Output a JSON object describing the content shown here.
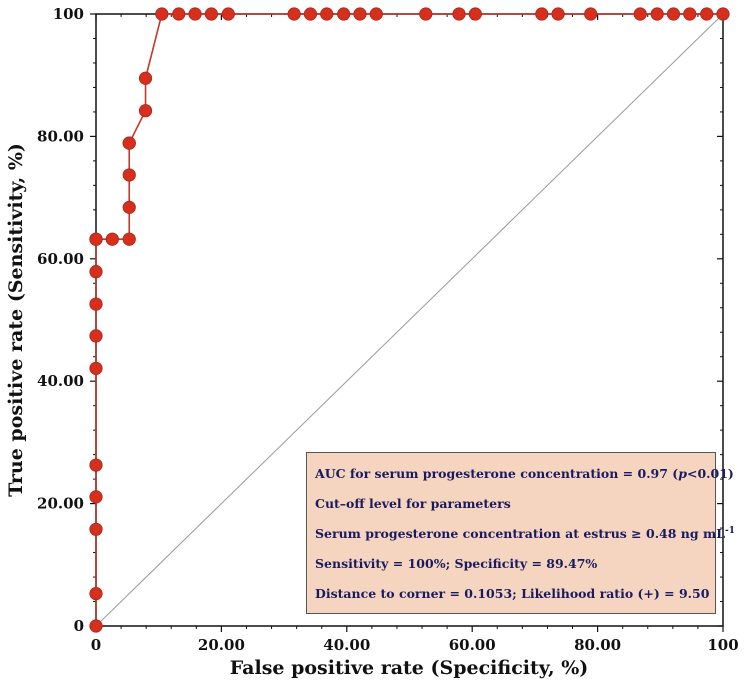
{
  "chart_data": {
    "type": "line",
    "xlabel": "False positive rate (Specificity, %)",
    "ylabel": "True positive rate (Sensitivity, %)",
    "xlim": [
      0,
      100
    ],
    "ylim": [
      0,
      100
    ],
    "x_ticks": [
      "0",
      "20.00",
      "40.00",
      "60.00",
      "80.00",
      "100"
    ],
    "y_ticks": [
      "0",
      "20.00",
      "40.00",
      "60.00",
      "80.00",
      "100"
    ],
    "grid": false,
    "colors": {
      "series": "#c0392b",
      "marker": "#d62f1e",
      "diagonal": "#999999",
      "box": "#f5d5c0",
      "box_text": "#1a1a5e"
    },
    "series": [
      {
        "x": [
          0,
          0,
          0,
          0,
          0,
          0,
          0,
          0,
          0,
          0,
          0,
          2.6,
          5.3,
          5.3,
          5.3,
          5.3,
          5.3,
          7.9,
          7.9,
          10.5,
          13.2,
          15.8,
          18.4,
          21.1,
          31.6,
          34.2,
          36.8,
          39.5,
          42.1,
          44.7,
          52.6,
          57.9,
          60.5,
          71.1,
          73.7,
          78.9,
          86.8,
          89.5,
          92.1,
          94.7,
          97.4,
          100
        ],
        "y": [
          0,
          5.3,
          15.8,
          21.1,
          26.3,
          42.1,
          47.4,
          52.6,
          57.9,
          63.2,
          63.2,
          63.2,
          63.2,
          68.4,
          73.7,
          78.9,
          78.9,
          84.2,
          89.5,
          100,
          100,
          100,
          100,
          100,
          100,
          100,
          100,
          100,
          100,
          100,
          100,
          100,
          100,
          100,
          100,
          100,
          100,
          100,
          100,
          100,
          100,
          100
        ]
      }
    ],
    "diagonal": [
      [
        0,
        0
      ],
      [
        100,
        100
      ]
    ],
    "annotations": {
      "auc_prefix": "AUC for serum progesterone concentration = 0.97 (",
      "auc_p": "p",
      "auc_suffix": "<0.01)",
      "cutoff": "Cut–off level for parameters",
      "estrus_prefix": "Serum progesterone concentration at estrus ≥ 0.48 ng mL",
      "estrus_sup": "-1",
      "sens_spec": "Sensitivity = 100%; Specificity = 89.47%",
      "distance": "Distance to corner = 0.1053; Likelihood ratio (+) = 9.50"
    }
  }
}
